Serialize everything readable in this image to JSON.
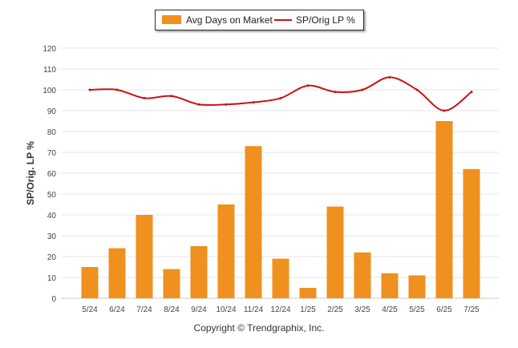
{
  "legend": {
    "bar_label": "Avg Days on Market",
    "line_label": "SP/Orig LP %"
  },
  "footer": "Copyright © Trendgraphix, Inc.",
  "colors": {
    "bar": "#f0901e",
    "line": "#cc1111",
    "grid": "#e6e6e6",
    "axis_text": "#444444"
  },
  "chart_data": {
    "type": "bar",
    "title": "",
    "xlabel": "",
    "ylabel": "SP/Orig. LP %",
    "ylim": [
      0,
      120
    ],
    "yticks": [
      0,
      10,
      20,
      30,
      40,
      50,
      60,
      70,
      80,
      90,
      100,
      110,
      120
    ],
    "grid": true,
    "legend_position": "top-center",
    "categories": [
      "5/24",
      "6/24",
      "7/24",
      "8/24",
      "9/24",
      "10/24",
      "11/24",
      "12/24",
      "1/25",
      "2/25",
      "3/25",
      "4/25",
      "5/25",
      "6/25",
      "7/25"
    ],
    "series": [
      {
        "name": "Avg Days on Market",
        "type": "bar",
        "values": [
          15,
          24,
          40,
          14,
          25,
          45,
          73,
          19,
          5,
          44,
          22,
          12,
          11,
          85,
          62
        ]
      },
      {
        "name": "SP/Orig LP %",
        "type": "line",
        "values": [
          100,
          100,
          96,
          97,
          93,
          93,
          94,
          96,
          102,
          99,
          100,
          106,
          100,
          90,
          99
        ]
      }
    ]
  }
}
